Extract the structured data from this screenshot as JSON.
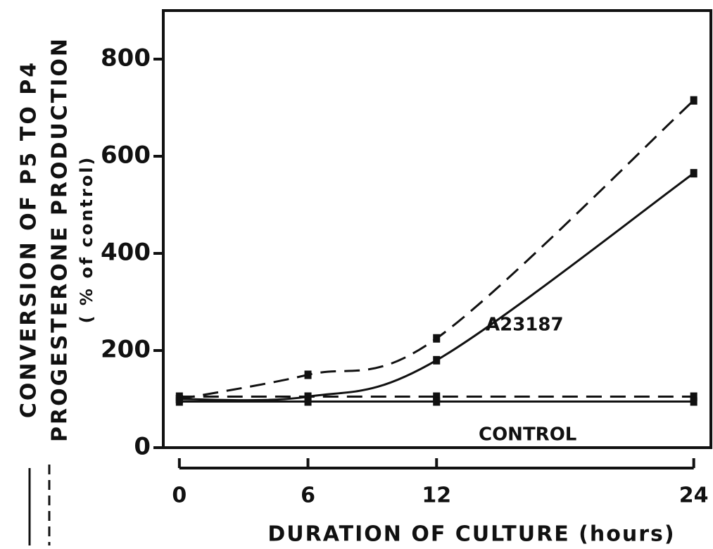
{
  "chart_data": {
    "type": "line",
    "ylabel": [
      "CONVERSION OF P5 TO P4",
      "PROGESTERONE PRODUCTION",
      "( % of control)"
    ],
    "xlabel": "DURATION OF CULTURE (hours)",
    "annotations": [
      "A23187",
      "CONTROL"
    ],
    "x": [
      0,
      6,
      12,
      24
    ],
    "series": [
      {
        "style": "dashed",
        "color": "#111",
        "values": [
          100,
          150,
          225,
          715
        ]
      },
      {
        "style": "solid",
        "color": "#111",
        "values": [
          100,
          105,
          180,
          565
        ]
      },
      {
        "style": "dashed",
        "color": "#111",
        "values": [
          105,
          105,
          105,
          105
        ]
      },
      {
        "style": "solid",
        "color": "#111",
        "values": [
          95,
          95,
          95,
          95
        ]
      }
    ],
    "xlim": [
      -0.75,
      24.8
    ],
    "xticks": [
      0,
      6,
      12,
      24
    ],
    "ylim": [
      0,
      900
    ],
    "yticks": [
      0,
      200,
      400,
      600,
      800
    ]
  }
}
